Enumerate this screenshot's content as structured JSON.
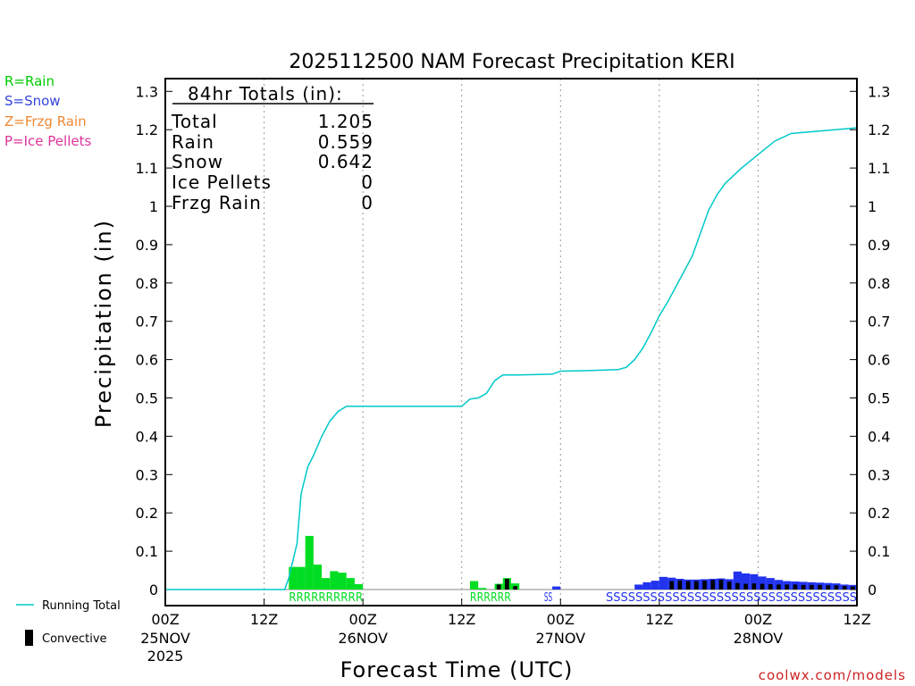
{
  "chart_data": {
    "type": "bar",
    "title": "2025112500 NAM Forecast Precipitation KERI",
    "xlabel": "Forecast Time (UTC)",
    "ylabel": "Precipitation  (in)",
    "ylim": [
      0,
      1.3
    ],
    "yticks": [
      0,
      0.1,
      0.2,
      0.3,
      0.4,
      0.5,
      0.6,
      0.7,
      0.8,
      0.9,
      1,
      1.1,
      1.2,
      1.3
    ],
    "ytick_labels": [
      "0",
      "0.1",
      "0.2",
      "0.3",
      "0.4",
      "0.5",
      "0.6",
      "0.7",
      "0.8",
      "0.9",
      "1",
      "1.1",
      "1.2",
      "1.3"
    ],
    "xlim_hours": [
      0,
      84
    ],
    "xticks": [
      {
        "hour": 0,
        "l1": "00Z",
        "l2": "25NOV",
        "l3": "2025"
      },
      {
        "hour": 12,
        "l1": "12Z",
        "l2": "",
        "l3": ""
      },
      {
        "hour": 24,
        "l1": "00Z",
        "l2": "26NOV",
        "l3": ""
      },
      {
        "hour": 36,
        "l1": "12Z",
        "l2": "",
        "l3": ""
      },
      {
        "hour": 48,
        "l1": "00Z",
        "l2": "27NOV",
        "l3": ""
      },
      {
        "hour": 60,
        "l1": "12Z",
        "l2": "",
        "l3": ""
      },
      {
        "hour": 72,
        "l1": "00Z",
        "l2": "28NOV",
        "l3": ""
      },
      {
        "hour": 84,
        "l1": "12Z",
        "l2": "",
        "l3": ""
      }
    ],
    "gridlines_hours": [
      12,
      24,
      36,
      48,
      60,
      72
    ],
    "legend_types": [
      {
        "label": "R=Rain",
        "color": "#00cc00"
      },
      {
        "label": "S=Snow",
        "color": "#3344dd"
      },
      {
        "label": "Z=Frzg Rain",
        "color": "#ee8833"
      },
      {
        "label": "P=Ice Pellets",
        "color": "#dd3399"
      }
    ],
    "legend_lines": [
      {
        "label": "Running Total",
        "color": "#00c8c8"
      },
      {
        "label": "Convective",
        "color": "#000000"
      }
    ],
    "totals": {
      "header": "84hr Totals (in):",
      "rows": [
        {
          "label": "Total",
          "value": "1.205"
        },
        {
          "label": "Rain",
          "value": "0.559"
        },
        {
          "label": "Snow",
          "value": "0.642"
        },
        {
          "label": "Ice Pellets",
          "value": "0"
        },
        {
          "label": "Frzg Rain",
          "value": "0"
        }
      ]
    },
    "colors": {
      "rain": "#00dd22",
      "snow": "#2233ee",
      "convective": "#000000",
      "running_total": "#00c8c8"
    },
    "series": [
      {
        "name": "Rain",
        "bars": [
          {
            "h": 15,
            "v": 0.059
          },
          {
            "h": 16,
            "v": 0.059
          },
          {
            "h": 17,
            "v": 0.14
          },
          {
            "h": 18,
            "v": 0.065
          },
          {
            "h": 19,
            "v": 0.03
          },
          {
            "h": 20,
            "v": 0.048
          },
          {
            "h": 21,
            "v": 0.044
          },
          {
            "h": 22,
            "v": 0.03
          },
          {
            "h": 23,
            "v": 0.014
          },
          {
            "h": 37,
            "v": 0.022
          },
          {
            "h": 38,
            "v": 0.004
          },
          {
            "h": 40,
            "v": 0.015
          },
          {
            "h": 41,
            "v": 0.03
          },
          {
            "h": 42,
            "v": 0.016
          }
        ]
      },
      {
        "name": "Snow",
        "bars": [
          {
            "h": 47,
            "v": 0.008
          },
          {
            "h": 57,
            "v": 0.013
          },
          {
            "h": 58,
            "v": 0.019
          },
          {
            "h": 59,
            "v": 0.023
          },
          {
            "h": 60,
            "v": 0.033
          },
          {
            "h": 61,
            "v": 0.031
          },
          {
            "h": 62,
            "v": 0.028
          },
          {
            "h": 63,
            "v": 0.026
          },
          {
            "h": 64,
            "v": 0.026
          },
          {
            "h": 65,
            "v": 0.027
          },
          {
            "h": 66,
            "v": 0.028
          },
          {
            "h": 67,
            "v": 0.029
          },
          {
            "h": 68,
            "v": 0.027
          },
          {
            "h": 69,
            "v": 0.047
          },
          {
            "h": 70,
            "v": 0.042
          },
          {
            "h": 71,
            "v": 0.04
          },
          {
            "h": 72,
            "v": 0.034
          },
          {
            "h": 73,
            "v": 0.03
          },
          {
            "h": 74,
            "v": 0.025
          },
          {
            "h": 75,
            "v": 0.022
          },
          {
            "h": 76,
            "v": 0.021
          },
          {
            "h": 77,
            "v": 0.02
          },
          {
            "h": 78,
            "v": 0.019
          },
          {
            "h": 79,
            "v": 0.018
          },
          {
            "h": 80,
            "v": 0.017
          },
          {
            "h": 81,
            "v": 0.016
          },
          {
            "h": 82,
            "v": 0.013
          },
          {
            "h": 83,
            "v": 0.012
          }
        ]
      },
      {
        "name": "Convective",
        "bars": [
          {
            "h": 40,
            "v": 0.013
          },
          {
            "h": 41,
            "v": 0.028
          },
          {
            "h": 42,
            "v": 0.009
          },
          {
            "h": 61,
            "v": 0.022
          },
          {
            "h": 62,
            "v": 0.024
          },
          {
            "h": 63,
            "v": 0.022
          },
          {
            "h": 64,
            "v": 0.022
          },
          {
            "h": 65,
            "v": 0.023
          },
          {
            "h": 66,
            "v": 0.025
          },
          {
            "h": 67,
            "v": 0.026
          },
          {
            "h": 68,
            "v": 0.021
          },
          {
            "h": 69,
            "v": 0.017
          },
          {
            "h": 70,
            "v": 0.015
          },
          {
            "h": 71,
            "v": 0.016
          },
          {
            "h": 72,
            "v": 0.015
          },
          {
            "h": 73,
            "v": 0.014
          },
          {
            "h": 74,
            "v": 0.013
          },
          {
            "h": 75,
            "v": 0.013
          },
          {
            "h": 76,
            "v": 0.013
          },
          {
            "h": 77,
            "v": 0.012
          },
          {
            "h": 78,
            "v": 0.012
          },
          {
            "h": 79,
            "v": 0.012
          },
          {
            "h": 80,
            "v": 0.011
          },
          {
            "h": 81,
            "v": 0.011
          },
          {
            "h": 82,
            "v": 0.009
          },
          {
            "h": 83,
            "v": 0.008
          }
        ]
      },
      {
        "name": "Running Total",
        "points": [
          [
            0,
            0
          ],
          [
            14.5,
            0
          ],
          [
            15,
            0.03
          ],
          [
            16,
            0.12
          ],
          [
            16.5,
            0.25
          ],
          [
            17.3,
            0.32
          ],
          [
            18,
            0.35
          ],
          [
            19,
            0.4
          ],
          [
            20,
            0.44
          ],
          [
            21,
            0.465
          ],
          [
            22,
            0.478
          ],
          [
            24,
            0.478
          ],
          [
            30,
            0.478
          ],
          [
            36,
            0.478
          ],
          [
            37,
            0.497
          ],
          [
            38,
            0.5
          ],
          [
            39,
            0.512
          ],
          [
            40,
            0.545
          ],
          [
            41,
            0.56
          ],
          [
            43,
            0.56
          ],
          [
            47,
            0.562
          ],
          [
            48,
            0.57
          ],
          [
            51,
            0.571
          ],
          [
            55,
            0.574
          ],
          [
            56,
            0.58
          ],
          [
            57,
            0.6
          ],
          [
            58,
            0.63
          ],
          [
            59,
            0.67
          ],
          [
            60,
            0.715
          ],
          [
            61,
            0.75
          ],
          [
            62,
            0.79
          ],
          [
            63,
            0.83
          ],
          [
            64,
            0.87
          ],
          [
            65,
            0.93
          ],
          [
            66,
            0.99
          ],
          [
            67,
            1.03
          ],
          [
            68,
            1.06
          ],
          [
            70,
            1.1
          ],
          [
            72,
            1.135
          ],
          [
            74,
            1.17
          ],
          [
            76,
            1.19
          ],
          [
            84,
            1.205
          ]
        ]
      }
    ],
    "ptype_labels": [
      {
        "text": "RRRRRRRRRR",
        "type": "rain",
        "start_hour": 15,
        "end_hour": 24
      },
      {
        "text": "RRRRRR",
        "type": "rain",
        "start_hour": 37,
        "end_hour": 42
      },
      {
        "text": "SS",
        "type": "snow",
        "start_hour": 46,
        "end_hour": 47
      },
      {
        "text": "SSSSSSSSSSSSSSSSSSSSSSSSSSSSSSSSSS",
        "type": "snow",
        "start_hour": 53.5,
        "end_hour": 84
      }
    ],
    "credit": "coolwx.com/models"
  }
}
